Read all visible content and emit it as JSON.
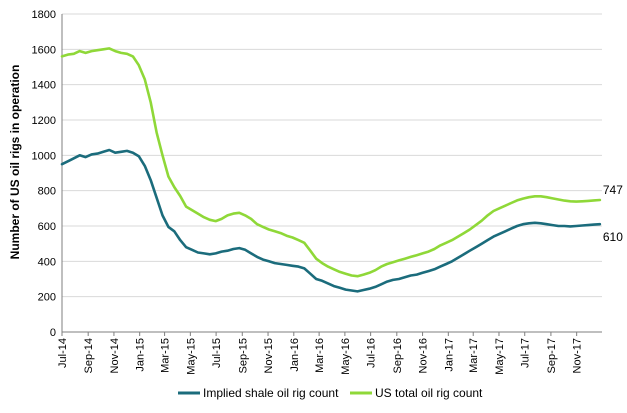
{
  "chart_data": {
    "type": "line",
    "title": "",
    "xlabel": "",
    "ylabel": "Number of US oil rigs in operation",
    "ylim": [
      0,
      1800
    ],
    "yticks": [
      0,
      200,
      400,
      600,
      800,
      1000,
      1200,
      1400,
      1600,
      1800
    ],
    "xlim": [
      "2014-07-01",
      "2017-12-31"
    ],
    "xticks": [
      {
        "label": "Jul-14",
        "date": "2014-07-01"
      },
      {
        "label": "Sep-14",
        "date": "2014-09-01"
      },
      {
        "label": "Nov-14",
        "date": "2014-11-01"
      },
      {
        "label": "Jan-15",
        "date": "2015-01-01"
      },
      {
        "label": "Mar-15",
        "date": "2015-03-01"
      },
      {
        "label": "May-15",
        "date": "2015-05-01"
      },
      {
        "label": "Jul-15",
        "date": "2015-07-01"
      },
      {
        "label": "Sep-15",
        "date": "2015-09-01"
      },
      {
        "label": "Nov-15",
        "date": "2015-11-01"
      },
      {
        "label": "Jan-16",
        "date": "2016-01-01"
      },
      {
        "label": "Mar-16",
        "date": "2016-03-01"
      },
      {
        "label": "May-16",
        "date": "2016-05-01"
      },
      {
        "label": "Jul-16",
        "date": "2016-07-01"
      },
      {
        "label": "Sep-16",
        "date": "2016-09-01"
      },
      {
        "label": "Nov-16",
        "date": "2016-11-01"
      },
      {
        "label": "Jan-17",
        "date": "2017-01-01"
      },
      {
        "label": "Mar-17",
        "date": "2017-03-01"
      },
      {
        "label": "May-17",
        "date": "2017-05-01"
      },
      {
        "label": "Jul-17",
        "date": "2017-07-01"
      },
      {
        "label": "Sep-17",
        "date": "2017-09-01"
      },
      {
        "label": "Nov-17",
        "date": "2017-11-01"
      }
    ],
    "grid": "horizontal",
    "legend_position": "bottom",
    "series": [
      {
        "name": "Implied shale oil rig count",
        "color": "#1b6c7c",
        "end_label": "610",
        "points": [
          [
            "2014-07-01",
            950
          ],
          [
            "2014-07-22",
            975
          ],
          [
            "2014-08-12",
            1000
          ],
          [
            "2014-08-26",
            990
          ],
          [
            "2014-09-09",
            1005
          ],
          [
            "2014-09-23",
            1010
          ],
          [
            "2014-10-07",
            1020
          ],
          [
            "2014-10-21",
            1030
          ],
          [
            "2014-11-04",
            1015
          ],
          [
            "2014-11-18",
            1020
          ],
          [
            "2014-12-02",
            1025
          ],
          [
            "2014-12-16",
            1015
          ],
          [
            "2014-12-30",
            995
          ],
          [
            "2015-01-13",
            940
          ],
          [
            "2015-01-27",
            860
          ],
          [
            "2015-02-10",
            760
          ],
          [
            "2015-02-24",
            660
          ],
          [
            "2015-03-10",
            595
          ],
          [
            "2015-03-24",
            570
          ],
          [
            "2015-04-07",
            520
          ],
          [
            "2015-04-21",
            480
          ],
          [
            "2015-05-05",
            465
          ],
          [
            "2015-05-19",
            450
          ],
          [
            "2015-06-02",
            445
          ],
          [
            "2015-06-16",
            440
          ],
          [
            "2015-06-30",
            445
          ],
          [
            "2015-07-14",
            455
          ],
          [
            "2015-07-28",
            460
          ],
          [
            "2015-08-11",
            470
          ],
          [
            "2015-08-25",
            475
          ],
          [
            "2015-09-08",
            465
          ],
          [
            "2015-09-22",
            445
          ],
          [
            "2015-10-06",
            425
          ],
          [
            "2015-10-20",
            410
          ],
          [
            "2015-11-03",
            400
          ],
          [
            "2015-11-17",
            390
          ],
          [
            "2015-12-01",
            385
          ],
          [
            "2015-12-15",
            380
          ],
          [
            "2015-12-29",
            375
          ],
          [
            "2016-01-12",
            370
          ],
          [
            "2016-01-26",
            360
          ],
          [
            "2016-02-09",
            330
          ],
          [
            "2016-02-23",
            300
          ],
          [
            "2016-03-08",
            290
          ],
          [
            "2016-03-22",
            275
          ],
          [
            "2016-04-05",
            260
          ],
          [
            "2016-04-19",
            250
          ],
          [
            "2016-05-03",
            240
          ],
          [
            "2016-05-17",
            235
          ],
          [
            "2016-05-31",
            230
          ],
          [
            "2016-06-14",
            238
          ],
          [
            "2016-06-28",
            245
          ],
          [
            "2016-07-12",
            255
          ],
          [
            "2016-07-26",
            270
          ],
          [
            "2016-08-09",
            285
          ],
          [
            "2016-08-23",
            295
          ],
          [
            "2016-09-06",
            300
          ],
          [
            "2016-09-20",
            310
          ],
          [
            "2016-10-04",
            320
          ],
          [
            "2016-10-18",
            325
          ],
          [
            "2016-11-01",
            335
          ],
          [
            "2016-11-15",
            345
          ],
          [
            "2016-11-29",
            355
          ],
          [
            "2016-12-13",
            370
          ],
          [
            "2016-12-27",
            385
          ],
          [
            "2017-01-10",
            400
          ],
          [
            "2017-01-24",
            420
          ],
          [
            "2017-02-07",
            440
          ],
          [
            "2017-02-21",
            460
          ],
          [
            "2017-03-07",
            480
          ],
          [
            "2017-03-21",
            500
          ],
          [
            "2017-04-04",
            520
          ],
          [
            "2017-04-18",
            540
          ],
          [
            "2017-05-02",
            555
          ],
          [
            "2017-05-16",
            570
          ],
          [
            "2017-05-30",
            585
          ],
          [
            "2017-06-13",
            600
          ],
          [
            "2017-06-27",
            610
          ],
          [
            "2017-07-11",
            615
          ],
          [
            "2017-07-25",
            618
          ],
          [
            "2017-08-08",
            615
          ],
          [
            "2017-08-22",
            610
          ],
          [
            "2017-09-05",
            605
          ],
          [
            "2017-09-19",
            600
          ],
          [
            "2017-10-03",
            600
          ],
          [
            "2017-10-17",
            598
          ],
          [
            "2017-10-31",
            600
          ],
          [
            "2017-11-14",
            603
          ],
          [
            "2017-11-28",
            605
          ],
          [
            "2017-12-12",
            608
          ],
          [
            "2017-12-26",
            610
          ]
        ]
      },
      {
        "name": "US total oil rig count",
        "color": "#8fd838",
        "end_label": "747",
        "points": [
          [
            "2014-07-01",
            1560
          ],
          [
            "2014-07-15",
            1570
          ],
          [
            "2014-07-29",
            1575
          ],
          [
            "2014-08-12",
            1590
          ],
          [
            "2014-08-26",
            1580
          ],
          [
            "2014-09-09",
            1590
          ],
          [
            "2014-09-23",
            1595
          ],
          [
            "2014-10-07",
            1600
          ],
          [
            "2014-10-21",
            1605
          ],
          [
            "2014-11-04",
            1590
          ],
          [
            "2014-11-18",
            1580
          ],
          [
            "2014-12-02",
            1575
          ],
          [
            "2014-12-16",
            1560
          ],
          [
            "2014-12-30",
            1510
          ],
          [
            "2015-01-13",
            1430
          ],
          [
            "2015-01-27",
            1300
          ],
          [
            "2015-02-10",
            1130
          ],
          [
            "2015-02-24",
            1000
          ],
          [
            "2015-03-10",
            880
          ],
          [
            "2015-03-24",
            820
          ],
          [
            "2015-04-07",
            770
          ],
          [
            "2015-04-21",
            710
          ],
          [
            "2015-05-05",
            690
          ],
          [
            "2015-05-19",
            670
          ],
          [
            "2015-06-02",
            650
          ],
          [
            "2015-06-16",
            635
          ],
          [
            "2015-06-30",
            628
          ],
          [
            "2015-07-14",
            640
          ],
          [
            "2015-07-28",
            660
          ],
          [
            "2015-08-11",
            670
          ],
          [
            "2015-08-25",
            675
          ],
          [
            "2015-09-08",
            660
          ],
          [
            "2015-09-22",
            640
          ],
          [
            "2015-10-06",
            610
          ],
          [
            "2015-10-20",
            595
          ],
          [
            "2015-11-03",
            580
          ],
          [
            "2015-11-17",
            570
          ],
          [
            "2015-12-01",
            560
          ],
          [
            "2015-12-15",
            545
          ],
          [
            "2015-12-29",
            535
          ],
          [
            "2016-01-12",
            520
          ],
          [
            "2016-01-26",
            505
          ],
          [
            "2016-02-09",
            460
          ],
          [
            "2016-02-23",
            415
          ],
          [
            "2016-03-08",
            390
          ],
          [
            "2016-03-22",
            370
          ],
          [
            "2016-04-05",
            355
          ],
          [
            "2016-04-19",
            340
          ],
          [
            "2016-05-03",
            330
          ],
          [
            "2016-05-17",
            320
          ],
          [
            "2016-05-31",
            316
          ],
          [
            "2016-06-14",
            325
          ],
          [
            "2016-06-28",
            335
          ],
          [
            "2016-07-12",
            350
          ],
          [
            "2016-07-26",
            370
          ],
          [
            "2016-08-09",
            385
          ],
          [
            "2016-08-23",
            395
          ],
          [
            "2016-09-06",
            405
          ],
          [
            "2016-09-20",
            415
          ],
          [
            "2016-10-04",
            425
          ],
          [
            "2016-10-18",
            435
          ],
          [
            "2016-11-01",
            445
          ],
          [
            "2016-11-15",
            455
          ],
          [
            "2016-11-29",
            470
          ],
          [
            "2016-12-13",
            490
          ],
          [
            "2016-12-27",
            505
          ],
          [
            "2017-01-10",
            520
          ],
          [
            "2017-01-24",
            540
          ],
          [
            "2017-02-07",
            560
          ],
          [
            "2017-02-21",
            580
          ],
          [
            "2017-03-07",
            605
          ],
          [
            "2017-03-21",
            630
          ],
          [
            "2017-04-04",
            660
          ],
          [
            "2017-04-18",
            685
          ],
          [
            "2017-05-02",
            700
          ],
          [
            "2017-05-16",
            715
          ],
          [
            "2017-05-30",
            730
          ],
          [
            "2017-06-13",
            745
          ],
          [
            "2017-06-27",
            755
          ],
          [
            "2017-07-11",
            763
          ],
          [
            "2017-07-25",
            768
          ],
          [
            "2017-08-08",
            768
          ],
          [
            "2017-08-22",
            763
          ],
          [
            "2017-09-05",
            756
          ],
          [
            "2017-09-19",
            750
          ],
          [
            "2017-10-03",
            744
          ],
          [
            "2017-10-17",
            740
          ],
          [
            "2017-10-31",
            738
          ],
          [
            "2017-11-14",
            740
          ],
          [
            "2017-11-28",
            742
          ],
          [
            "2017-12-12",
            745
          ],
          [
            "2017-12-26",
            747
          ]
        ]
      }
    ]
  }
}
